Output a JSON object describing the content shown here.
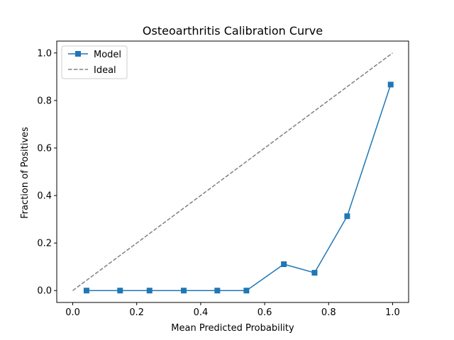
{
  "chart_data": {
    "type": "line",
    "title": "Osteoarthritis Calibration Curve",
    "xlabel": "Mean Predicted Probability",
    "ylabel": "Fraction of Positives",
    "xlim": [
      -0.05,
      1.05
    ],
    "ylim": [
      -0.05,
      1.05
    ],
    "xticks": [
      0.0,
      0.2,
      0.4,
      0.6,
      0.8,
      1.0
    ],
    "yticks": [
      0.0,
      0.2,
      0.4,
      0.6,
      0.8,
      1.0
    ],
    "xtick_labels": [
      "0.0",
      "0.2",
      "0.4",
      "0.6",
      "0.8",
      "1.0"
    ],
    "ytick_labels": [
      "0.0",
      "0.2",
      "0.4",
      "0.6",
      "0.8",
      "1.0"
    ],
    "grid": false,
    "legend_position": "upper-left",
    "series": [
      {
        "name": "Model",
        "color": "#1f77b4",
        "marker": "square",
        "style": "solid",
        "x": [
          0.043,
          0.148,
          0.24,
          0.347,
          0.452,
          0.543,
          0.66,
          0.756,
          0.858,
          0.994
        ],
        "y": [
          0.0,
          0.0,
          0.0,
          0.0,
          0.0,
          0.0,
          0.111,
          0.075,
          0.313,
          0.867
        ]
      },
      {
        "name": "Ideal",
        "color": "#808080",
        "marker": "none",
        "style": "dashed",
        "x": [
          0.0,
          1.0
        ],
        "y": [
          0.0,
          1.0
        ]
      }
    ]
  }
}
